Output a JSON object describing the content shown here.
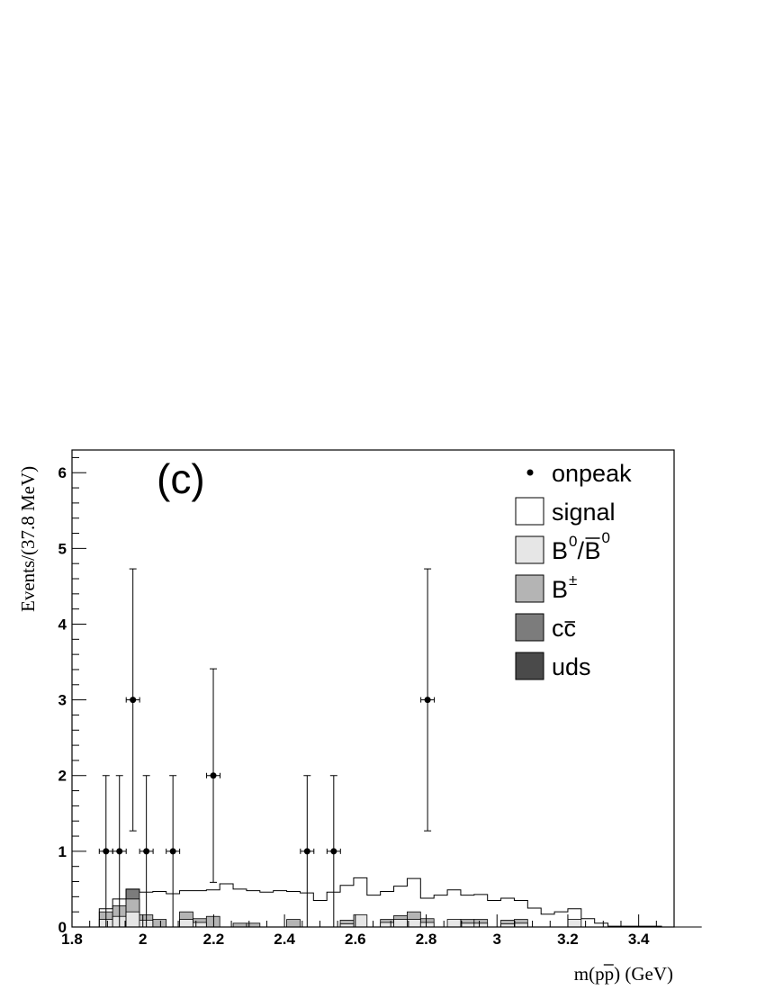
{
  "chart_data": {
    "type": "histogram",
    "panel_label": "(c)",
    "xlabel": "m(pp) (GeV)",
    "ylabel": "Events/(37.8 MeV)",
    "xlim": [
      1.8,
      3.5
    ],
    "ylim": [
      0,
      6.3
    ],
    "x_ticks": [
      "1.8",
      "2",
      "2.2",
      "2.4",
      "2.6",
      "2.8",
      "3",
      "3.2",
      "3.4"
    ],
    "y_ticks": [
      "0",
      "1",
      "2",
      "3",
      "4",
      "5",
      "6"
    ],
    "bin_width": 0.0378,
    "bin_start": 1.877,
    "grid": false,
    "legend_position": "top-right",
    "legend": [
      {
        "label": "onpeak",
        "style": "marker"
      },
      {
        "label": "signal",
        "style": "box",
        "color": "#ffffff"
      },
      {
        "label": "B",
        "sup": "0",
        "mid": "/",
        "label2": "B",
        "sup2": "0",
        "style": "box",
        "color": "#e6e6e6"
      },
      {
        "label": "B",
        "sup": "±",
        "style": "box",
        "color": "#b4b4b4"
      },
      {
        "label": "cc",
        "style": "box",
        "color": "#7c7c7c"
      },
      {
        "label": "uds",
        "style": "box",
        "color": "#4a4a4a"
      }
    ],
    "series": [
      {
        "name": "signal",
        "color": "#ffffff",
        "values": [
          0.24,
          0.37,
          0.44,
          0.46,
          0.47,
          0.44,
          0.48,
          0.48,
          0.49,
          0.57,
          0.5,
          0.48,
          0.46,
          0.48,
          0.47,
          0.45,
          0.35,
          0.46,
          0.55,
          0.65,
          0.42,
          0.47,
          0.54,
          0.64,
          0.38,
          0.42,
          0.49,
          0.42,
          0.43,
          0.35,
          0.38,
          0.35,
          0.25,
          0.17,
          0.2,
          0.24,
          0.11,
          0.05,
          0.01,
          0.01,
          0.01,
          0.01,
          0.0,
          0.0,
          0.0
        ]
      },
      {
        "name": "B0/B0bar",
        "color": "#e6e6e6",
        "values": [
          0.1,
          0.14,
          0.2,
          0.09,
          0.0,
          0.0,
          0.1,
          0.06,
          0.0,
          0.0,
          0.0,
          0.0,
          0.0,
          0.0,
          0.0,
          0.0,
          0.0,
          0.0,
          0.04,
          0.16,
          0.0,
          0.06,
          0.1,
          0.1,
          0.06,
          0.0,
          0.1,
          0.05,
          0.05,
          0.0,
          0.04,
          0.05,
          0.0,
          0.0,
          0.0,
          0.1,
          0.0,
          0.0,
          0.0,
          0.0,
          0.0,
          0.0,
          0.0,
          0.0,
          0.0
        ]
      },
      {
        "name": "B±",
        "color": "#b4b4b4",
        "values": [
          0.1,
          0.14,
          0.17,
          0.07,
          0.1,
          0.0,
          0.1,
          0.05,
          0.14,
          0.0,
          0.05,
          0.05,
          0.0,
          0.0,
          0.1,
          0.0,
          0.0,
          0.0,
          0.05,
          0.0,
          0.0,
          0.04,
          0.05,
          0.1,
          0.05,
          0.0,
          0.0,
          0.05,
          0.05,
          0.0,
          0.05,
          0.05,
          0.0,
          0.0,
          0.0,
          0.0,
          0.0,
          0.0,
          0.0,
          0.0,
          0.0,
          0.0,
          0.0,
          0.0,
          0.0
        ]
      },
      {
        "name": "cc",
        "color": "#7c7c7c",
        "values": [
          0.0,
          0.0,
          0.13,
          0.0,
          0.0,
          0.0,
          0.0,
          0.0,
          0.0,
          0.0,
          0.0,
          0.0,
          0.0,
          0.0,
          0.0,
          0.0,
          0.0,
          0.0,
          0.0,
          0.0,
          0.0,
          0.0,
          0.0,
          0.0,
          0.0,
          0.0,
          0.0,
          0.0,
          0.0,
          0.0,
          0.0,
          0.0,
          0.0,
          0.0,
          0.0,
          0.0,
          0.0,
          0.0,
          0.0,
          0.0,
          0.0,
          0.0,
          0.0,
          0.0,
          0.0
        ]
      },
      {
        "name": "uds",
        "color": "#4a4a4a",
        "values": []
      }
    ],
    "onpeak": [
      {
        "x": 1.896,
        "y": 1,
        "xerr": 0.019,
        "ylo": 0,
        "yhi": 2
      },
      {
        "x": 1.934,
        "y": 1,
        "xerr": 0.019,
        "ylo": 0,
        "yhi": 2
      },
      {
        "x": 1.972,
        "y": 3,
        "xerr": 0.019,
        "ylo": 1.27,
        "yhi": 4.73
      },
      {
        "x": 2.01,
        "y": 1,
        "xerr": 0.019,
        "ylo": 0,
        "yhi": 2
      },
      {
        "x": 2.085,
        "y": 1,
        "xerr": 0.019,
        "ylo": 0,
        "yhi": 2
      },
      {
        "x": 2.199,
        "y": 2,
        "xerr": 0.019,
        "ylo": 0.59,
        "yhi": 3.41
      },
      {
        "x": 2.464,
        "y": 1,
        "xerr": 0.019,
        "ylo": 0,
        "yhi": 2
      },
      {
        "x": 2.539,
        "y": 1,
        "xerr": 0.019,
        "ylo": 0,
        "yhi": 2
      },
      {
        "x": 2.804,
        "y": 3,
        "xerr": 0.019,
        "ylo": 1.27,
        "yhi": 4.73
      }
    ]
  }
}
